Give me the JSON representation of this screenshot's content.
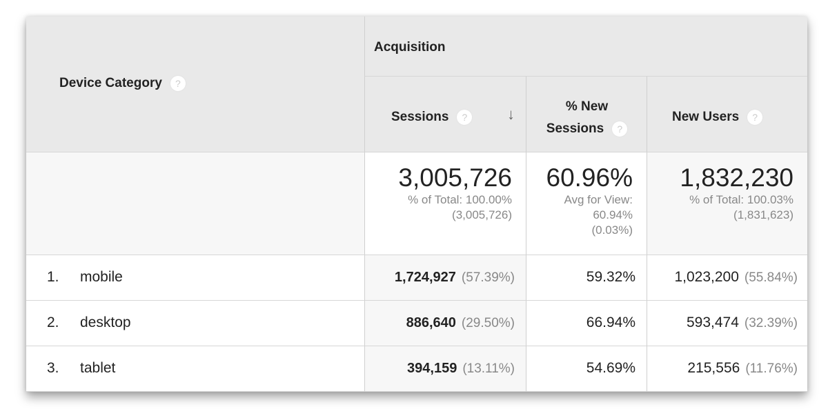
{
  "header": {
    "dimension": "Device Category",
    "group": "Acquisition",
    "columns": [
      {
        "label": "Sessions",
        "sorted": "descending"
      },
      {
        "label_line1": "% New",
        "label_line2": "Sessions"
      },
      {
        "label": "New Users"
      }
    ],
    "help_icon": "?"
  },
  "summary": {
    "sessions": {
      "value": "3,005,726",
      "line1": "% of Total: 100.00%",
      "line2": "(3,005,726)"
    },
    "new_sessions": {
      "value": "60.96%",
      "line1": "Avg for View:",
      "line2": "60.94%",
      "line3": "(0.03%)"
    },
    "new_users": {
      "value": "1,832,230",
      "line1": "% of Total: 100.03%",
      "line2": "(1,831,623)"
    }
  },
  "rows": [
    {
      "index": "1.",
      "device": "mobile",
      "sessions": "1,724,927",
      "sessions_pct": "(57.39%)",
      "new_sessions": "59.32%",
      "new_users": "1,023,200",
      "new_users_pct": "(55.84%)"
    },
    {
      "index": "2.",
      "device": "desktop",
      "sessions": "886,640",
      "sessions_pct": "(29.50%)",
      "new_sessions": "66.94%",
      "new_users": "593,474",
      "new_users_pct": "(32.39%)"
    },
    {
      "index": "3.",
      "device": "tablet",
      "sessions": "394,159",
      "sessions_pct": "(13.11%)",
      "new_sessions": "54.69%",
      "new_users": "215,556",
      "new_users_pct": "(11.76%)"
    }
  ]
}
